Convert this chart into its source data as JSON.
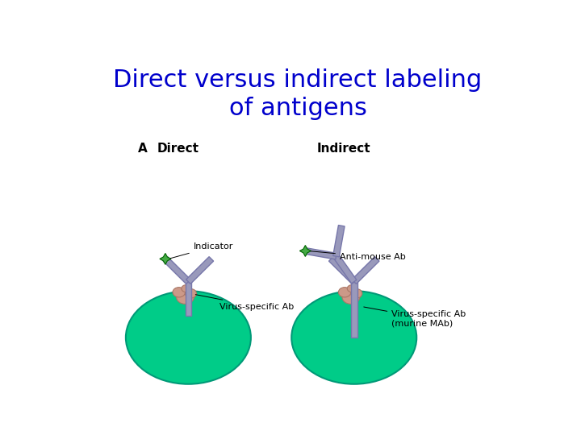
{
  "title_line1": "Direct versus indirect labeling",
  "title_line2": "of antigens",
  "title_color": "#0000CC",
  "title_fontsize": 22,
  "title_fontweight": "normal",
  "background_color": "#FFFFFF",
  "label_A": "A",
  "label_direct": "Direct",
  "label_indirect": "Indirect",
  "label_indicator": "Indicator",
  "label_virus_specific": "Virus-specific Ab",
  "label_anti_mouse": "Anti-mouse Ab",
  "label_virus_specific2": "Virus-specific Ab\n(murine MAb)",
  "antibody_color": "#9999BB",
  "antibody_edge": "#7777AA",
  "cell_color": "#00CC88",
  "antigen_color": "#CC9988",
  "indicator_color": "#44AA44",
  "label_font_size": 8,
  "section_font_size": 10
}
